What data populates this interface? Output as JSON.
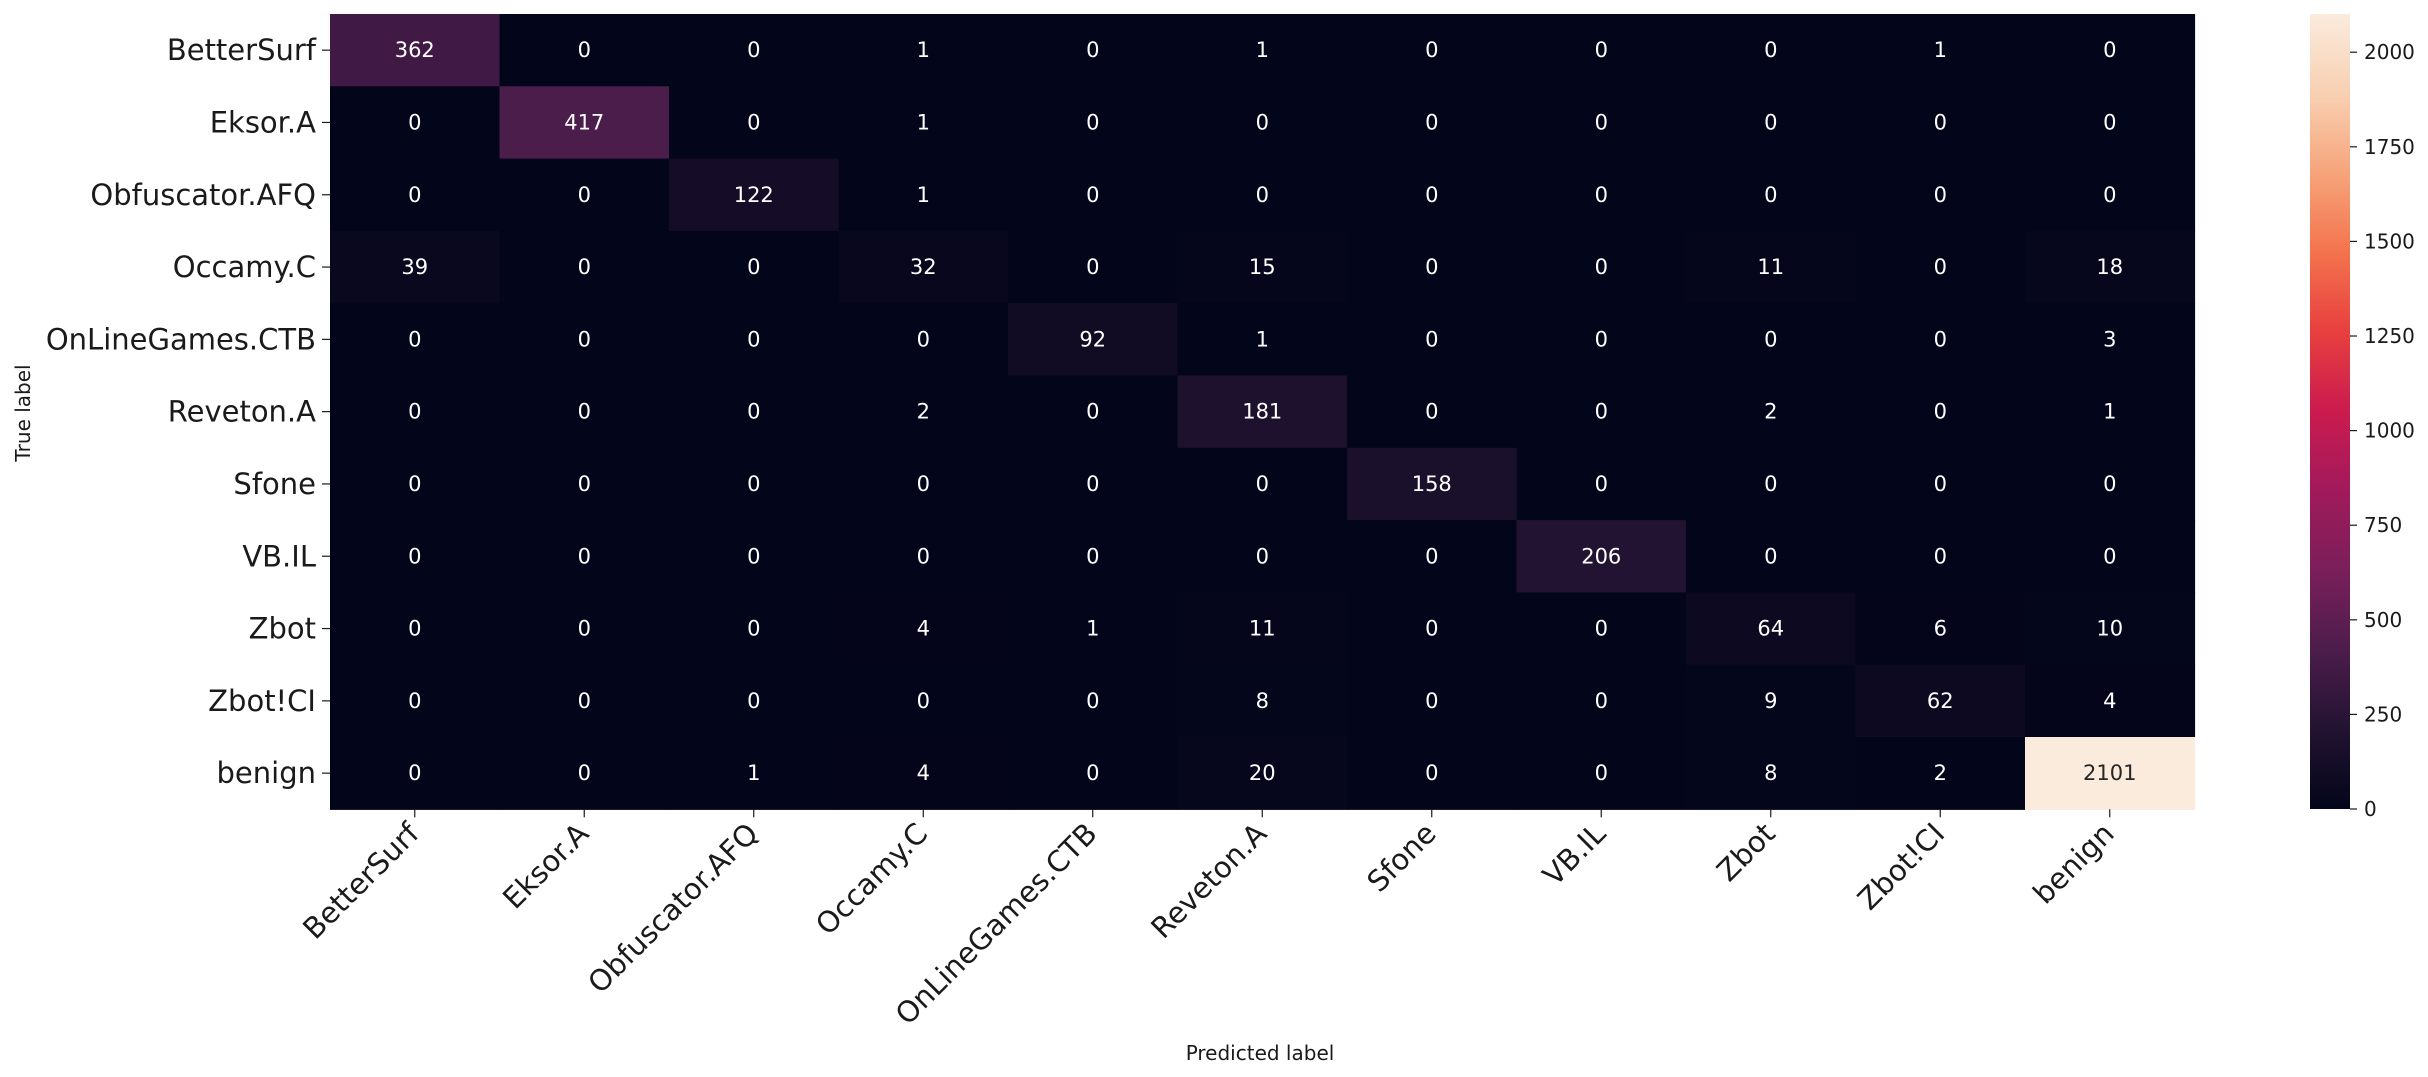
{
  "chart_data": {
    "type": "heatmap",
    "title": "",
    "xlabel": "Predicted label",
    "ylabel": "True label",
    "row_labels": [
      "BetterSurf",
      "Eksor.A",
      "Obfuscator.AFQ",
      "Occamy.C",
      "OnLineGames.CTB",
      "Reveton.A",
      "Sfone",
      "VB.IL",
      "Zbot",
      "Zbot!CI",
      "benign"
    ],
    "col_labels": [
      "BetterSurf",
      "Eksor.A",
      "Obfuscator.AFQ",
      "Occamy.C",
      "OnLineGames.CTB",
      "Reveton.A",
      "Sfone",
      "VB.IL",
      "Zbot",
      "Zbot!CI",
      "benign"
    ],
    "values": [
      [
        362,
        0,
        0,
        1,
        0,
        1,
        0,
        0,
        0,
        1,
        0
      ],
      [
        0,
        417,
        0,
        1,
        0,
        0,
        0,
        0,
        0,
        0,
        0
      ],
      [
        0,
        0,
        122,
        1,
        0,
        0,
        0,
        0,
        0,
        0,
        0
      ],
      [
        39,
        0,
        0,
        32,
        0,
        15,
        0,
        0,
        11,
        0,
        18
      ],
      [
        0,
        0,
        0,
        0,
        92,
        1,
        0,
        0,
        0,
        0,
        3
      ],
      [
        0,
        0,
        0,
        2,
        0,
        181,
        0,
        0,
        2,
        0,
        1
      ],
      [
        0,
        0,
        0,
        0,
        0,
        0,
        158,
        0,
        0,
        0,
        0
      ],
      [
        0,
        0,
        0,
        0,
        0,
        0,
        0,
        206,
        0,
        0,
        0
      ],
      [
        0,
        0,
        0,
        4,
        1,
        11,
        0,
        0,
        64,
        6,
        10
      ],
      [
        0,
        0,
        0,
        0,
        0,
        8,
        0,
        0,
        9,
        62,
        4
      ],
      [
        0,
        0,
        1,
        4,
        0,
        20,
        0,
        0,
        8,
        2,
        2101
      ]
    ],
    "colorbar": {
      "min": 0,
      "max": 2101,
      "ticks": [
        0,
        250,
        500,
        750,
        1000,
        1250,
        1500,
        1750,
        2000
      ],
      "colormap": "rocket",
      "colors": [
        "#03051a",
        "#221331",
        "#4c1d4b",
        "#7a1f5a",
        "#a11a5b",
        "#cb1b4f",
        "#e83f3f",
        "#f3734d",
        "#f6a47b",
        "#f8d0b2",
        "#faebdd"
      ]
    },
    "grid": false,
    "legend": "colorbar-right"
  }
}
